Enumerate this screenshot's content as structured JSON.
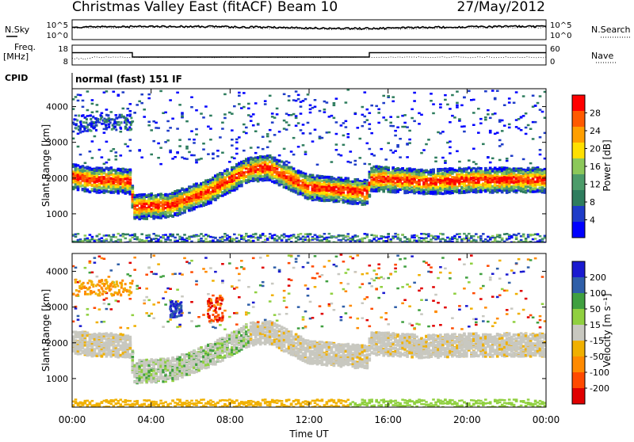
{
  "header": {
    "station": "Christmas Valley East (fitACF)",
    "beam": "Beam 10",
    "date": "27/May/2012"
  },
  "rows": {
    "nsky_label": "N.Sky",
    "nsky_ticks": [
      "10^5",
      "10^0"
    ],
    "nsearch_label": "N.Search",
    "nsearch_ticks": [
      "10^5",
      "10^0"
    ],
    "freq_label_1": "Freq.",
    "freq_label_2": "[MHz]",
    "freq_ticks": [
      "18",
      "8"
    ],
    "nave_label": "Nave",
    "nave_ticks": [
      "60",
      "0"
    ],
    "cpid_label": "CPID",
    "cpid_value": "normal (fast) 151 IF"
  },
  "colors": {
    "power_scale": [
      "#0000ff",
      "#1e3cc8",
      "#2e7d5e",
      "#4c9c6a",
      "#8cc85a",
      "#ffe000",
      "#ff9f00",
      "#ff5a00",
      "#ff0000"
    ],
    "velocity_scale": [
      "#e00000",
      "#ff4a00",
      "#ff8a00",
      "#f0b000",
      "#c8c8c0",
      "#90d040",
      "#40a040",
      "#2f5fa8",
      "#1a1ad0"
    ]
  },
  "chart_data": [
    {
      "type": "heatmap",
      "title": "Power",
      "xlabel": "",
      "ylabel": "Slant Range [km]",
      "x_ticks": [
        "00:00",
        "04:00",
        "08:00",
        "12:00",
        "16:00",
        "20:00",
        "00:00"
      ],
      "y_ticks": [
        "1000",
        "2000",
        "3000",
        "4000"
      ],
      "ylim": [
        200,
        4500
      ],
      "colorbar": {
        "label": "Power [dB]",
        "ticks": [
          "4",
          "8",
          "12",
          "16",
          "20",
          "24",
          "28"
        ],
        "range": [
          0,
          30
        ]
      },
      "echo_band_center_km": [
        {
          "hour": 0,
          "km": 2050
        },
        {
          "hour": 1,
          "km": 1950
        },
        {
          "hour": 2,
          "km": 1950
        },
        {
          "hour": 3,
          "km": 1900
        },
        {
          "hour": 3.1,
          "km": 1200
        },
        {
          "hour": 5,
          "km": 1250
        },
        {
          "hour": 7,
          "km": 1650
        },
        {
          "hour": 9,
          "km": 2250
        },
        {
          "hour": 10,
          "km": 2300
        },
        {
          "hour": 12,
          "km": 1750
        },
        {
          "hour": 15,
          "km": 1600
        },
        {
          "hour": 15.1,
          "km": 2000
        },
        {
          "hour": 18,
          "km": 1900
        },
        {
          "hour": 20,
          "km": 1950
        },
        {
          "hour": 24,
          "km": 1950
        }
      ]
    },
    {
      "type": "heatmap",
      "title": "Velocity",
      "xlabel": "Time UT",
      "ylabel": "Slant Range [km]",
      "x_ticks": [
        "00:00",
        "04:00",
        "08:00",
        "12:00",
        "16:00",
        "20:00",
        "00:00"
      ],
      "y_ticks": [
        "1000",
        "2000",
        "3000",
        "4000"
      ],
      "ylim": [
        200,
        4500
      ],
      "colorbar": {
        "label": "Velocity [m s⁻¹]",
        "ticks": [
          "200",
          "100",
          "50",
          "15",
          "-15",
          "-50",
          "-100",
          "-200"
        ],
        "range": [
          -250,
          250
        ]
      }
    }
  ]
}
